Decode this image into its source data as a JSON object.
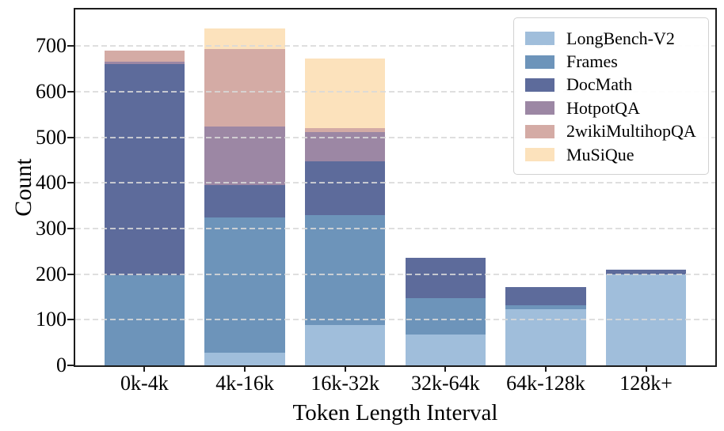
{
  "chart_data": {
    "type": "bar",
    "stacked": true,
    "title": "",
    "xlabel": "Token Length Interval",
    "ylabel": "Count",
    "categories": [
      "0k-4k",
      "4k-16k",
      "16k-32k",
      "32k-64k",
      "64k-128k",
      "128k+"
    ],
    "series": [
      {
        "name": "LongBench-V2",
        "color": "#a0bedb",
        "values": [
          0,
          27,
          88,
          67,
          123,
          200
        ]
      },
      {
        "name": "Frames",
        "color": "#6d94ba",
        "values": [
          197,
          298,
          242,
          81,
          9,
          0
        ]
      },
      {
        "name": "DocMath",
        "color": "#5d6b9b",
        "values": [
          463,
          71,
          118,
          87,
          40,
          10
        ]
      },
      {
        "name": "HotpotQA",
        "color": "#9c87a4",
        "values": [
          5,
          127,
          63,
          0,
          0,
          0
        ]
      },
      {
        "name": "2wikiMultihopQA",
        "color": "#d4aba5",
        "values": [
          25,
          170,
          9,
          0,
          0,
          0
        ]
      },
      {
        "name": "MuSiQue",
        "color": "#fce2bc",
        "values": [
          0,
          45,
          152,
          0,
          0,
          0
        ]
      }
    ],
    "yticks": [
      0,
      100,
      200,
      300,
      400,
      500,
      600,
      700
    ],
    "ylim": [
      0,
      780
    ],
    "grid": "horizontal-dashed",
    "legend_position": "top-right",
    "colors": {
      "spine": "#1c1c1c",
      "gridline": "#d9d9d9",
      "legend_border": "#d2d2d2",
      "text": "#000000"
    }
  }
}
